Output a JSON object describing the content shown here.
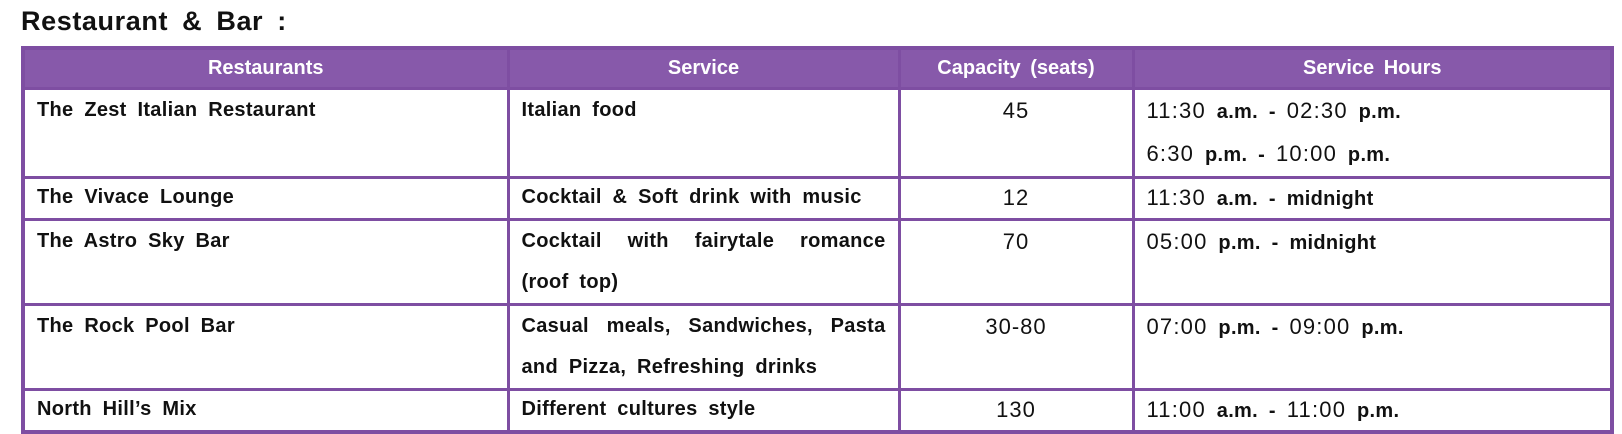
{
  "title": "Restaurant & Bar :",
  "table": {
    "headers": [
      "Restaurants",
      "Service",
      "Capacity (seats)",
      "Service Hours"
    ],
    "rows": [
      {
        "name": "The Zest Italian Restaurant",
        "service": "Italian food",
        "capacity": "45",
        "hours": [
          {
            "start": "11:30",
            "start_sfx": "a.m.",
            "sep": "-",
            "end": "02:30",
            "end_sfx": "p.m."
          },
          {
            "start": "6:30",
            "start_sfx": "p.m.",
            "sep": "-",
            "end": "10:00",
            "end_sfx": "p.m."
          }
        ]
      },
      {
        "name": "The Vivace Lounge",
        "service": "Cocktail & Soft drink with music",
        "capacity": "12",
        "hours": [
          {
            "start": "11:30",
            "start_sfx": "a.m.",
            "sep": "-",
            "end": "",
            "end_sfx": "midnight"
          }
        ]
      },
      {
        "name": "The Astro Sky Bar",
        "service": "Cocktail with fairytale romance (roof top)",
        "capacity": "70",
        "hours": [
          {
            "start": "05:00",
            "start_sfx": "p.m.",
            "sep": "-",
            "end": "",
            "end_sfx": "midnight"
          }
        ]
      },
      {
        "name": "The Rock Pool Bar",
        "service": "Casual meals, Sandwiches, Pasta and Pizza, Refreshing drinks",
        "capacity": "30-80",
        "hours": [
          {
            "start": "07:00",
            "start_sfx": "p.m.",
            "sep": "-",
            "end": "09:00",
            "end_sfx": "p.m."
          }
        ]
      },
      {
        "name": "North Hill’s Mix",
        "service": "Different cultures style",
        "capacity": "130",
        "hours": [
          {
            "start": "11:00",
            "start_sfx": "a.m.",
            "sep": "-",
            "end": "11:00",
            "end_sfx": "p.m."
          }
        ]
      }
    ]
  },
  "colors": {
    "header_bg": "#8759aa",
    "border": "#7e4ea2",
    "header_text": "#ffffff"
  }
}
